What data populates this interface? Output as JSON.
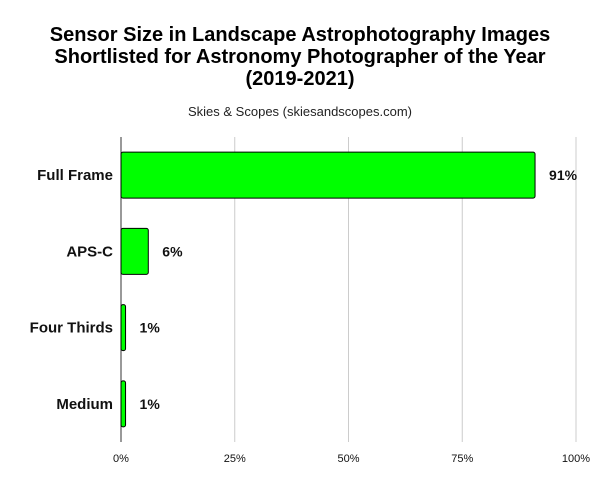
{
  "chart_data": {
    "type": "bar",
    "orientation": "horizontal",
    "title_lines": [
      "Sensor Size in Landscape Astrophotography Images",
      "Shortlisted for Astronomy Photographer of the Year",
      "(2019-2021)"
    ],
    "subtitle": "Skies & Scopes (skiesandscopes.com)",
    "categories": [
      "Full Frame",
      "APS-C",
      "Four Thirds",
      "Medium"
    ],
    "values": [
      91,
      6,
      1,
      1
    ],
    "value_labels": [
      "91%",
      "6%",
      "1%",
      "1%"
    ],
    "x_ticks": [
      0,
      25,
      50,
      75,
      100
    ],
    "x_tick_labels": [
      "0%",
      "25%",
      "50%",
      "75%",
      "100%"
    ],
    "xlim": [
      0,
      100
    ],
    "grid": true,
    "legend": "none",
    "bar_color": "#00ff00",
    "bar_stroke": "#000000",
    "grid_color": "#cccccc"
  }
}
